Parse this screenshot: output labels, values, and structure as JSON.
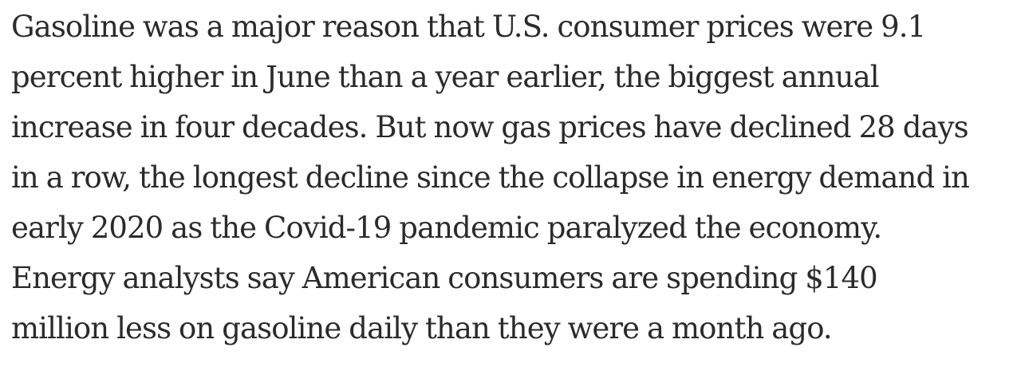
{
  "article": {
    "paragraph_lines": [
      "Gasoline was a major reason that U.S. consumer prices were 9.1",
      "percent higher in June than a year earlier, the biggest annual",
      "increase in four decades. But now gas prices have declined 28 days",
      "in a row, the longest decline since the collapse in energy demand in",
      "early 2020 as the Covid-19 pandemic paralyzed the economy.",
      "Energy analysts say American consumers are spending $140",
      "million less on gasoline daily than they were a month ago."
    ]
  }
}
